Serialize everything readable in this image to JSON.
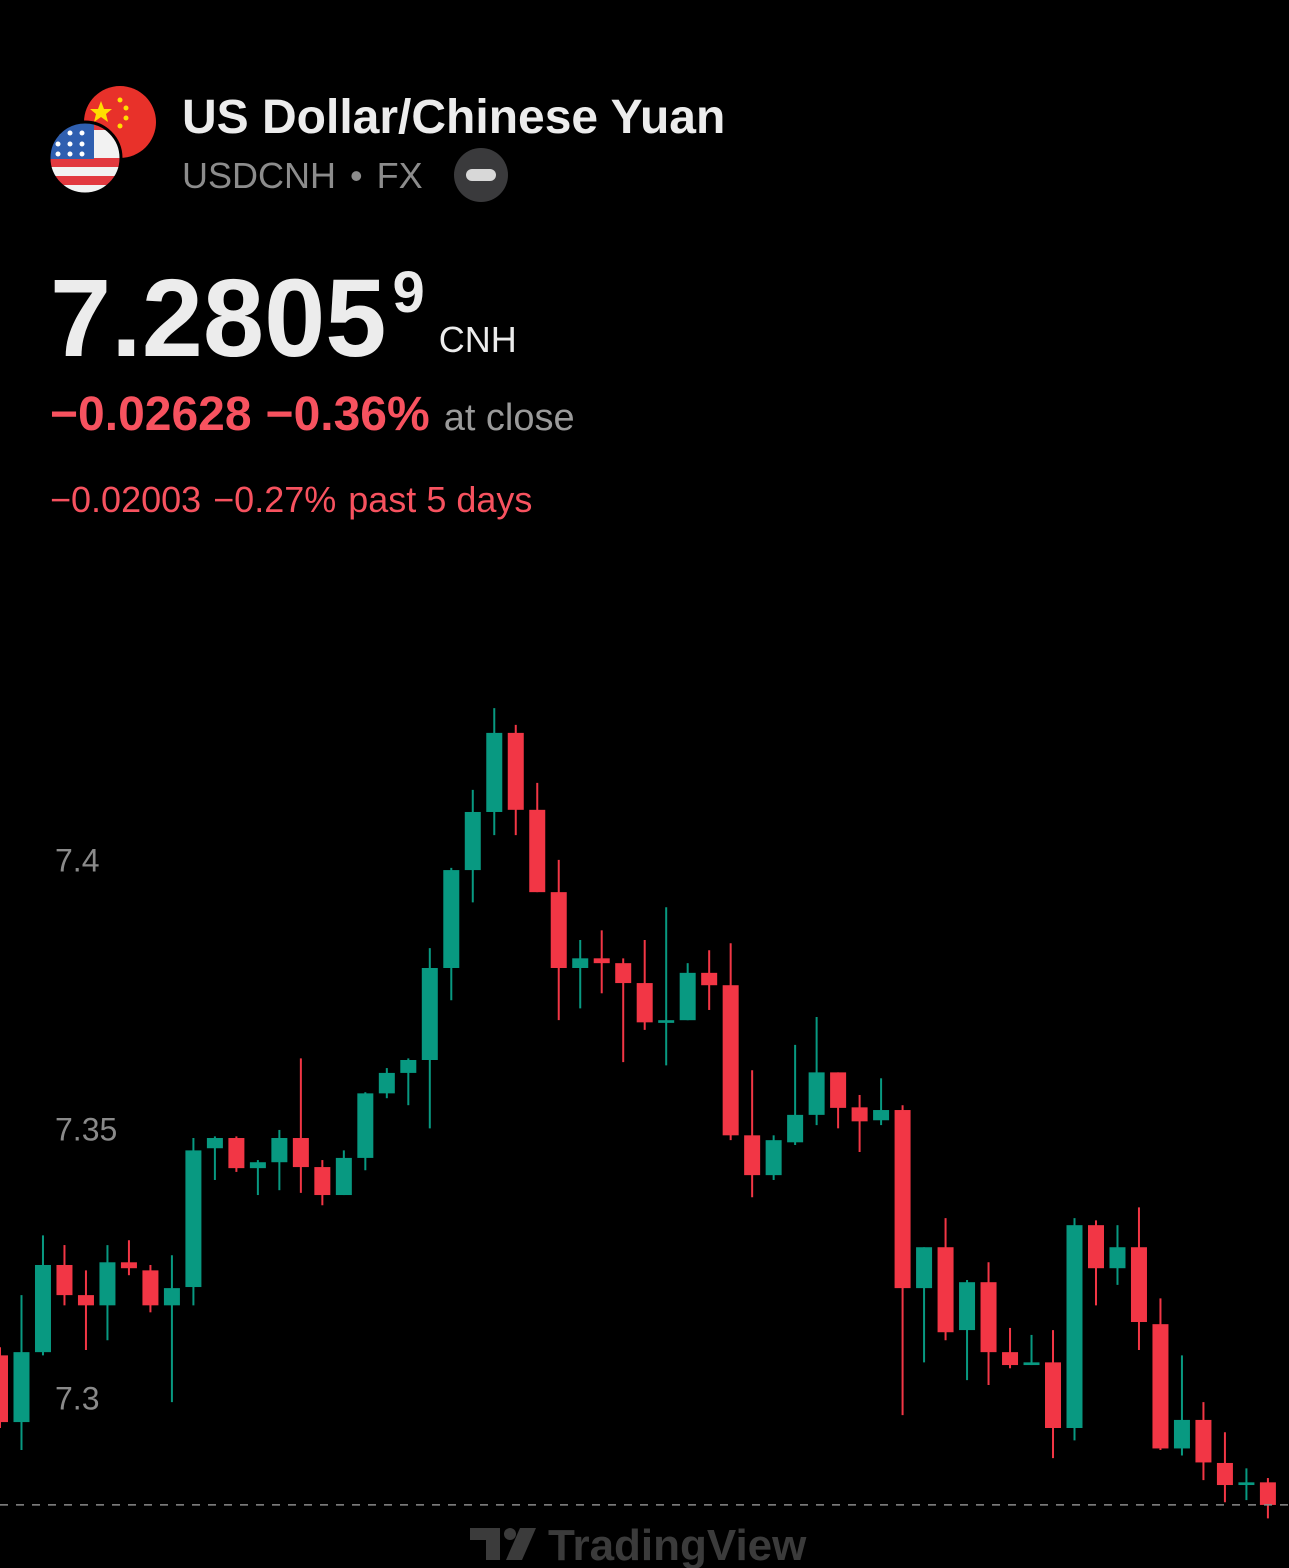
{
  "header": {
    "title": "US Dollar/Chinese Yuan",
    "symbol": "USDCNH",
    "exchange": "FX"
  },
  "quote": {
    "price": "7.2805",
    "price_last_digit": "9",
    "currency": "CNH",
    "change": "−0.02628",
    "change_percent": "−0.36%",
    "status": "at close",
    "change_5d": "−0.02003",
    "change_5d_percent": "−0.27%",
    "change_5d_label": "past 5 days"
  },
  "watermark": "TradingView",
  "chart_data": {
    "type": "candlestick",
    "up_color": "#089981",
    "down_color": "#f23645",
    "ylim": [
      7.2779,
      7.4489
    ],
    "yticks": [
      7.3,
      7.35,
      7.4
    ],
    "open": [
      7.3085,
      7.2961,
      7.3091,
      7.3253,
      7.3197,
      7.3178,
      7.3258,
      7.3243,
      7.3178,
      7.3212,
      7.347,
      7.3489,
      7.3433,
      7.3444,
      7.3489,
      7.3435,
      7.3383,
      7.3452,
      7.3572,
      7.361,
      7.3634,
      7.3805,
      7.3987,
      7.4095,
      7.4242,
      7.4099,
      7.3946,
      7.3805,
      7.3823,
      7.3814,
      7.3777,
      7.3703,
      7.3708,
      7.3796,
      7.3773,
      7.3494,
      7.342,
      7.3481,
      7.3532,
      7.3611,
      7.3546,
      7.3522,
      7.3541,
      7.321,
      7.3286,
      7.3132,
      7.3221,
      7.3091,
      7.3067,
      7.3072,
      7.295,
      7.3327,
      7.3247,
      7.3286,
      7.3143,
      7.2912,
      7.2965,
      7.2885,
      7.2844,
      7.2849
    ],
    "high": [
      7.31,
      7.3197,
      7.3308,
      7.329,
      7.3243,
      7.329,
      7.3299,
      7.3253,
      7.3271,
      7.3489,
      7.3492,
      7.3492,
      7.3448,
      7.3504,
      7.3637,
      7.3448,
      7.3466,
      7.3574,
      7.3619,
      7.3637,
      7.3842,
      7.3991,
      7.4136,
      7.4288,
      7.4257,
      7.4149,
      7.4006,
      7.3857,
      7.3875,
      7.3823,
      7.3857,
      7.3918,
      7.3814,
      7.3838,
      7.3851,
      7.3615,
      7.3494,
      7.3662,
      7.3714,
      7.3611,
      7.3569,
      7.36,
      7.355,
      7.3286,
      7.334,
      7.3225,
      7.3258,
      7.3136,
      7.3123,
      7.3132,
      7.334,
      7.3336,
      7.3327,
      7.336,
      7.3191,
      7.3085,
      7.2998,
      7.2942,
      7.2875,
      7.2857
    ],
    "low": [
      7.295,
      7.2909,
      7.3085,
      7.3178,
      7.3095,
      7.3113,
      7.3234,
      7.3165,
      7.2998,
      7.3178,
      7.3411,
      7.3426,
      7.3383,
      7.3392,
      7.3387,
      7.3364,
      7.3383,
      7.3429,
      7.3563,
      7.355,
      7.3507,
      7.3745,
      7.3927,
      7.4052,
      7.4052,
      7.3946,
      7.3708,
      7.373,
      7.3758,
      7.363,
      7.369,
      7.3624,
      7.3708,
      7.3727,
      7.3485,
      7.3379,
      7.3411,
      7.3476,
      7.3513,
      7.3507,
      7.3463,
      7.3513,
      7.2974,
      7.3072,
      7.3113,
      7.3039,
      7.303,
      7.3061,
      7.3067,
      7.2894,
      7.2927,
      7.3178,
      7.3216,
      7.3095,
      7.2909,
      7.2899,
      7.2853,
      7.2812,
      7.2816,
      7.2782
    ],
    "close": [
      7.2961,
      7.3091,
      7.3253,
      7.3197,
      7.3178,
      7.3258,
      7.3247,
      7.3178,
      7.321,
      7.3466,
      7.3489,
      7.3433,
      7.3444,
      7.3489,
      7.3435,
      7.3383,
      7.3452,
      7.3572,
      7.361,
      7.3634,
      7.3805,
      7.3987,
      7.4095,
      7.4242,
      7.4099,
      7.3946,
      7.3805,
      7.3823,
      7.3814,
      7.3777,
      7.3704,
      7.3708,
      7.3796,
      7.3773,
      7.3494,
      7.342,
      7.3485,
      7.3532,
      7.3611,
      7.3545,
      7.352,
      7.3541,
      7.321,
      7.3286,
      7.3128,
      7.3221,
      7.3091,
      7.3067,
      7.3072,
      7.295,
      7.3327,
      7.3247,
      7.3286,
      7.3147,
      7.2912,
      7.2965,
      7.2886,
      7.2844,
      7.2849,
      7.2807
    ]
  }
}
